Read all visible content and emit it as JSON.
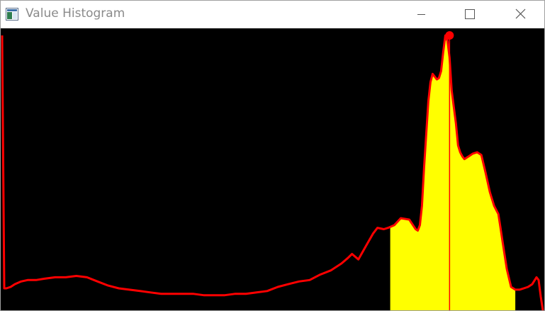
{
  "window": {
    "title": "Value Histogram",
    "controls": {
      "minimize_icon": "minimize-icon",
      "maximize_icon": "maximize-icon",
      "close_icon": "close-icon"
    }
  },
  "colors": {
    "background": "#000000",
    "curve": "#ff0000",
    "selection_fill": "#ffff00",
    "marker": "#ff0000",
    "title_text": "#8a8a8a"
  },
  "chart_data": {
    "type": "area",
    "title": "",
    "xlabel": "",
    "ylabel": "",
    "xlim": [
      0,
      255
    ],
    "ylim": [
      0,
      100
    ],
    "grid": false,
    "x": [
      0,
      1,
      2,
      4,
      6,
      9,
      12,
      16,
      20,
      25,
      30,
      35,
      40,
      45,
      50,
      55,
      60,
      65,
      70,
      75,
      80,
      85,
      90,
      95,
      100,
      105,
      110,
      115,
      120,
      125,
      130,
      135,
      140,
      145,
      150,
      155,
      160,
      163,
      165,
      168,
      172,
      175,
      177,
      180,
      182,
      185,
      188,
      192,
      195,
      196,
      197,
      198,
      199,
      200,
      201,
      202,
      203,
      204,
      205,
      206,
      207,
      208,
      209,
      210,
      211,
      212,
      213,
      214,
      215,
      216,
      217,
      218,
      220,
      222,
      224,
      226,
      228,
      230,
      232,
      234,
      235,
      236,
      237,
      238,
      240,
      242,
      243,
      244,
      246,
      248,
      250,
      252,
      253,
      254,
      255
    ],
    "values": [
      100,
      8.0,
      8.0,
      8.5,
      9.5,
      10.5,
      11.0,
      11.0,
      11.5,
      12.0,
      12.0,
      12.5,
      12.0,
      10.5,
      9.0,
      8.0,
      7.5,
      7.0,
      6.5,
      6.0,
      6.0,
      6.0,
      6.0,
      5.5,
      5.5,
      5.5,
      6.0,
      6.0,
      6.5,
      7.0,
      8.5,
      9.5,
      10.5,
      11.0,
      13.0,
      14.5,
      17.0,
      19.0,
      20.5,
      18.5,
      24.0,
      28.0,
      30.0,
      29.5,
      30.0,
      31.0,
      33.5,
      33.0,
      29.5,
      29.0,
      31.0,
      38.0,
      52.0,
      64.0,
      76.0,
      83.0,
      86.0,
      85.0,
      84.0,
      84.5,
      87.0,
      94.0,
      100.0,
      98.0,
      92.0,
      80.0,
      74.0,
      68.0,
      60.0,
      57.5,
      56.0,
      55.0,
      56.0,
      57.0,
      57.5,
      56.5,
      50.0,
      43.0,
      38.0,
      35.0,
      30.0,
      25.0,
      20.0,
      15.0,
      8.5,
      7.5,
      7.5,
      7.5,
      8.0,
      8.5,
      9.5,
      12.0,
      11.0,
      5.0,
      0.0
    ],
    "selection_range": [
      183,
      242
    ],
    "peak_marker_x": 211
  }
}
